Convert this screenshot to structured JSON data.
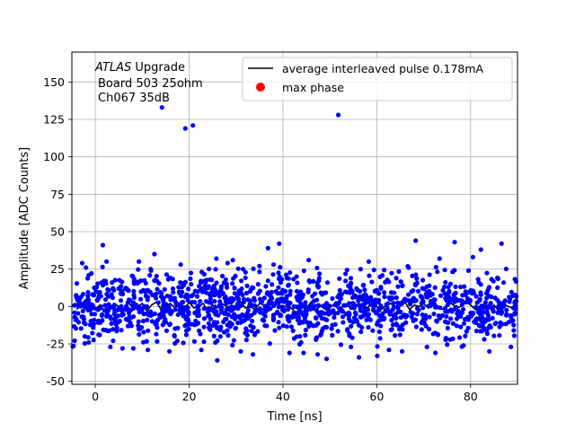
{
  "chart_data": {
    "type": "scatter",
    "title": "",
    "xlabel": "Time [ns]",
    "ylabel": "Amplitude [ADC Counts]",
    "xlim": [
      -5,
      90
    ],
    "ylim": [
      -52,
      170
    ],
    "x_ticks": [
      0,
      20,
      40,
      60,
      80
    ],
    "y_ticks": [
      -50,
      -25,
      0,
      25,
      50,
      75,
      100,
      125,
      150
    ],
    "grid": true,
    "legend_position": "top-right",
    "annotation": {
      "italic": "ATLAS",
      "rest": " Upgrade",
      "line2": "Board 503 25ohm",
      "line3": "Ch067 35dB"
    },
    "series": [
      {
        "name": "average interleaved pulse 0.178mA",
        "kind": "line",
        "color": "#000000",
        "x": [
          -4,
          -3,
          -2,
          -1,
          0,
          1,
          2,
          3,
          4,
          5,
          6,
          7,
          8,
          9,
          10,
          11,
          12,
          13,
          14,
          15,
          16,
          17,
          18,
          19,
          20,
          21,
          22,
          23,
          24,
          25,
          26,
          27,
          28,
          29,
          30,
          31,
          32,
          33,
          34,
          35,
          36,
          37,
          38,
          39,
          40,
          41,
          42,
          43,
          44,
          45,
          46,
          47,
          48,
          49,
          50,
          51,
          52,
          53,
          54,
          55,
          56,
          57,
          58,
          59,
          60,
          61,
          62,
          63,
          64,
          65,
          66,
          67,
          68,
          69,
          70,
          71,
          72,
          73,
          74,
          75,
          76,
          77,
          78,
          79,
          80,
          81,
          82,
          83,
          84,
          85,
          86,
          87,
          88,
          89,
          90
        ],
        "y": [
          -2,
          1,
          -1,
          2,
          -2,
          1,
          0,
          -3,
          2,
          0,
          -2,
          3,
          -1,
          0,
          2,
          -3,
          1,
          3,
          -2,
          0,
          2,
          -1,
          1,
          -2,
          3,
          -1,
          0,
          2,
          -3,
          1,
          -1,
          2,
          0,
          -2,
          1,
          3,
          -1,
          0,
          -2,
          2,
          1,
          -3,
          0,
          2,
          -1,
          1,
          -2,
          0,
          2,
          -1,
          3,
          -2,
          0,
          1,
          -1,
          2,
          -3,
          1,
          0,
          -2,
          2,
          1,
          -1,
          3,
          0,
          -2,
          1,
          2,
          -1,
          0,
          3,
          -2,
          1,
          0,
          2,
          -1,
          3,
          0,
          -2,
          1,
          2,
          -1,
          0,
          3,
          1,
          -2,
          0,
          2,
          -1,
          1,
          -3,
          2,
          0,
          -1,
          1
        ]
      },
      {
        "name": "max phase",
        "kind": "marker",
        "color": "#ff0000",
        "x": [],
        "y": []
      },
      {
        "name": "",
        "kind": "scatter",
        "color": "#0000ff",
        "noise_seed": 7,
        "x": [
          14.2,
          19.2,
          20.8,
          51.8,
          1.6,
          36.8,
          39.2,
          68.3,
          76.6,
          86.6,
          82.2,
          25.8,
          29.3,
          18.2,
          9.3,
          -2.8,
          49.3,
          56.2,
          72.5,
          3.2,
          60.1,
          44.4,
          11.2,
          33.6,
          65.4,
          8.1,
          26.0,
          31.0,
          47.4,
          54.5,
          62.6,
          78.5,
          84.0,
          88.6,
          -1.4,
          5.8,
          15.8,
          41.4,
          22.6,
          70.7,
          58.3,
          80.5,
          45.5,
          38.0,
          12.6,
          28.2,
          73.4,
          35.0,
          2.4,
          66.8
        ],
        "y": [
          133,
          119,
          121,
          128,
          41,
          39,
          42,
          44,
          43,
          42,
          38,
          32,
          31,
          28,
          30,
          29,
          -35,
          -34,
          -31,
          -27,
          -33,
          -31,
          -29,
          -32,
          -30,
          -28,
          -36,
          -30,
          -32,
          -27,
          -29,
          -26,
          -30,
          -27,
          -24,
          -28,
          -30,
          -31,
          -29,
          -27,
          30,
          33,
          31,
          28,
          35,
          29,
          32,
          27,
          30,
          26
        ]
      }
    ]
  }
}
